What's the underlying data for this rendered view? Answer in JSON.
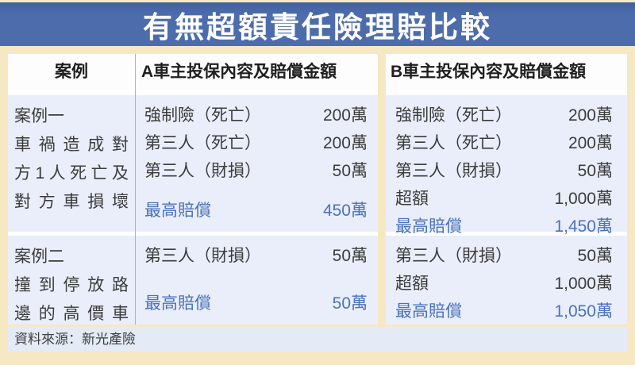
{
  "title": "有無超額責任險理賠比較",
  "source": "資料來源：新光產險",
  "colors": {
    "banner_blue": "#4d6cac",
    "background_cream": "#f6e8c2",
    "row_pale_blue": "#e9eefa",
    "source_strip_blue": "#e4ebf6",
    "highlight_text_blue": "#4a72ba",
    "body_text": "#3c3c3c"
  },
  "table": {
    "headers": {
      "case": "案例",
      "a": "A車主投保內容及賠償金額",
      "b": "B車主投保內容及賠償金額"
    },
    "rows": [
      {
        "case_lines": [
          "案例一",
          "車禍造成對",
          "方1人死亡及",
          "對方車損壞"
        ],
        "a_items": [
          {
            "label": "強制險（死亡）",
            "amount": "200萬"
          },
          {
            "label": "第三人（死亡）",
            "amount": "200萬"
          },
          {
            "label": "第三人（財損）",
            "amount": "50萬"
          }
        ],
        "a_total": {
          "label": "最高賠償",
          "amount": "450萬"
        },
        "b_items": [
          {
            "label": "強制險（死亡）",
            "amount": "200萬"
          },
          {
            "label": "第三人（死亡）",
            "amount": "200萬"
          },
          {
            "label": "第三人（財損）",
            "amount": "50萬"
          },
          {
            "label": "超額",
            "amount": "1,000萬"
          }
        ],
        "b_total": {
          "label": "最高賠償",
          "amount": "1,450萬"
        }
      },
      {
        "case_lines": [
          "案例二",
          "撞到停放路",
          "邊的高價車"
        ],
        "a_items": [
          {
            "label": "第三人（財損）",
            "amount": "50萬"
          }
        ],
        "a_total": {
          "label": "最高賠償",
          "amount": "50萬"
        },
        "b_items": [
          {
            "label": "第三人（財損）",
            "amount": "50萬"
          },
          {
            "label": "超額",
            "amount": "1,000萬"
          }
        ],
        "b_total": {
          "label": "最高賠償",
          "amount": "1,050萬"
        }
      }
    ]
  },
  "chart_data": {
    "type": "table",
    "title": "有無超額責任險理賠比較",
    "columns": [
      "案例",
      "A車主投保內容及賠償金額",
      "B車主投保內容及賠償金額"
    ],
    "rows": [
      [
        "案例一 車禍造成對方1人死亡及對方車損壞",
        "強制險（死亡）200萬；第三人（死亡）200萬；第三人（財損）50萬；最高賠償 450萬",
        "強制險（死亡）200萬；第三人（死亡）200萬；第三人（財損）50萬；超額1,000萬；最高賠償 1,450萬"
      ],
      [
        "案例二 撞到停放路邊的高價車",
        "第三人（財損）50萬；最高賠償 50萬",
        "第三人（財損）50萬；超額1,000萬；最高賠償 1,050萬"
      ]
    ],
    "source": "資料來源：新光產險"
  }
}
